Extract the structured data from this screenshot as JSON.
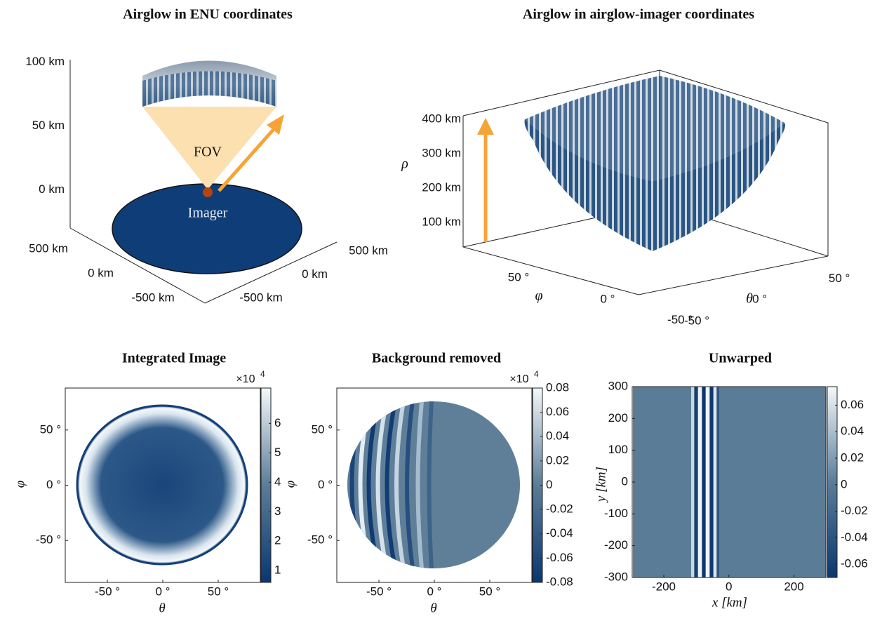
{
  "chart_data": [
    {
      "type": "surface3d",
      "title": "Airglow in ENU coordinates",
      "annotations": [
        "FOV",
        "Imager"
      ],
      "xlim": [
        -600,
        600
      ],
      "xticks": [
        {
          "value": -500,
          "label": "-500 km"
        },
        {
          "value": 0,
          "label": "0 km"
        },
        {
          "value": 500,
          "label": "500 km"
        }
      ],
      "ylim": [
        -600,
        600
      ],
      "yticks": [
        {
          "value": -500,
          "label": "-500 km"
        },
        {
          "value": 0,
          "label": "0 km"
        },
        {
          "value": 500,
          "label": "500 km"
        }
      ],
      "zlim": [
        -30,
        100
      ],
      "zticks": [
        {
          "value": 0,
          "label": "0 km"
        },
        {
          "value": 50,
          "label": "50 km"
        },
        {
          "value": 100,
          "label": "100 km"
        }
      ]
    },
    {
      "type": "surface3d",
      "title": "Airglow in airglow-imager coordinates",
      "zlabel": "ρ",
      "xlabel": "θ",
      "ylabel": "φ",
      "xlim": [
        -90,
        90
      ],
      "xticks": [
        {
          "value": -50,
          "label": "-50 °"
        },
        {
          "value": 0,
          "label": "0 °"
        },
        {
          "value": 50,
          "label": "50 °"
        }
      ],
      "ylim": [
        -90,
        90
      ],
      "yticks": [
        {
          "value": -50,
          "label": "-50 °"
        },
        {
          "value": 0,
          "label": "0 °"
        },
        {
          "value": 50,
          "label": "50 °"
        }
      ],
      "zlim": [
        0,
        420
      ],
      "zticks": [
        {
          "value": 100,
          "label": "100 km"
        },
        {
          "value": 200,
          "label": "200 km"
        },
        {
          "value": 300,
          "label": "300 km"
        },
        {
          "value": 400,
          "label": "400 km"
        }
      ]
    },
    {
      "type": "heatmap",
      "title": "Integrated Image",
      "xlabel": "θ",
      "ylabel": "φ",
      "xlim": [
        -88,
        88
      ],
      "xticks": [
        {
          "value": -50,
          "label": "-50 °"
        },
        {
          "value": 0,
          "label": "0 °"
        },
        {
          "value": 50,
          "label": "50 °"
        }
      ],
      "ylim": [
        -88,
        88
      ],
      "yticks": [
        {
          "value": -50,
          "label": "-50 °"
        },
        {
          "value": 0,
          "label": "0 °"
        },
        {
          "value": 50,
          "label": "50 °"
        }
      ],
      "colorbar_lim": [
        0.6,
        7.2
      ],
      "colorbar_ticks": [
        1,
        2,
        3,
        4,
        5,
        6
      ],
      "colorbar_scale": "×10",
      "colorbar_exponent": 4,
      "colormap": [
        "#0a3771",
        "#5a7d98",
        "#f4f8fb"
      ]
    },
    {
      "type": "heatmap",
      "title": "Background removed",
      "xlabel": "θ",
      "ylabel": "φ",
      "xlim": [
        -88,
        88
      ],
      "xticks": [
        {
          "value": -50,
          "label": "-50 °"
        },
        {
          "value": 0,
          "label": "0 °"
        },
        {
          "value": 50,
          "label": "50 °"
        }
      ],
      "ylim": [
        -88,
        88
      ],
      "yticks": [
        {
          "value": -50,
          "label": "-50 °"
        },
        {
          "value": 0,
          "label": "0 °"
        },
        {
          "value": 50,
          "label": "50 °"
        }
      ],
      "colorbar_lim": [
        -0.08,
        0.08
      ],
      "colorbar_ticks": [
        -0.08,
        -0.06,
        -0.04,
        -0.02,
        0,
        0.02,
        0.04,
        0.06,
        0.08
      ],
      "colorbar_scale": "×10",
      "colorbar_exponent": 4,
      "colormap": [
        "#0a3771",
        "#5a7d98",
        "#f4f8fb"
      ]
    },
    {
      "type": "heatmap",
      "title": "Unwarped",
      "xlabel": "x [km]",
      "ylabel": "y [km]",
      "xlim": [
        -297,
        298
      ],
      "xticks": [
        -200,
        0,
        200
      ],
      "ylim": [
        -300,
        300
      ],
      "yticks": [
        -300,
        -200,
        -100,
        0,
        100,
        200,
        300
      ],
      "colorbar_lim": [
        -0.07,
        0.074
      ],
      "colorbar_ticks": [
        -0.06,
        -0.04,
        -0.02,
        0,
        0.02,
        0.04,
        0.06
      ],
      "colormap": [
        "#0a3771",
        "#5a7d98",
        "#f4f8fb"
      ]
    }
  ]
}
